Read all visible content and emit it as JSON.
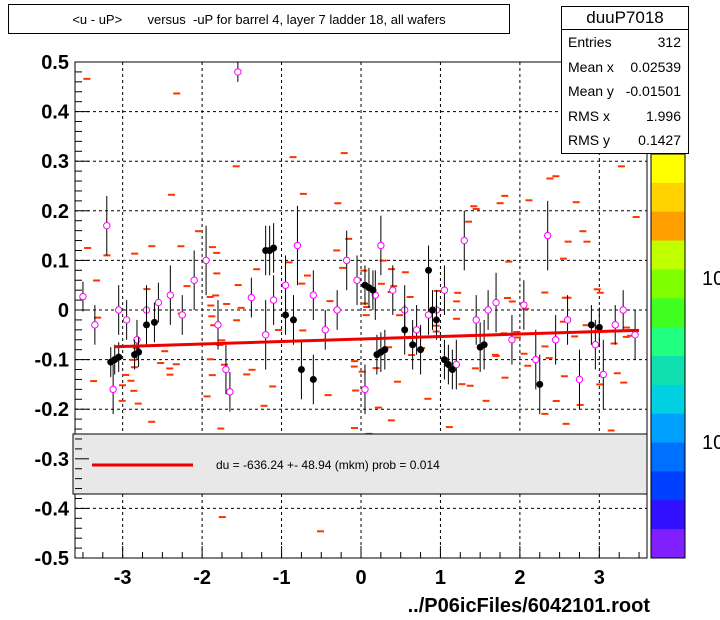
{
  "title": "<u - uP>       versus  -uP for barrel 4, layer 7 ladder 18, all wafers",
  "stats": {
    "name": "duuP7018",
    "rows": [
      {
        "label": "Entries",
        "value": "312"
      },
      {
        "label": "Mean x",
        "value": "0.02539"
      },
      {
        "label": "Mean y",
        "value": "-0.01501"
      },
      {
        "label": "RMS x",
        "value": "1.996"
      },
      {
        "label": "RMS y",
        "value": "0.1427"
      }
    ]
  },
  "legend": {
    "fit_text": "du = -636.24 +- 48.94 (mkm) prob = 0.014",
    "fit_color": "#ee0000"
  },
  "footer": "../P06icFiles/6042101.root",
  "colorbar": {
    "labels": [
      "10",
      "10"
    ],
    "colors": [
      "#ffff00",
      "#ffd200",
      "#ffa000",
      "#bfff00",
      "#80ff00",
      "#40ff20",
      "#20ff80",
      "#10e0b0",
      "#00d0e0",
      "#00a0ff",
      "#0070ff",
      "#0040ff",
      "#3010ff",
      "#8020ff"
    ]
  },
  "chart_data": {
    "type": "scatter",
    "xlim": [
      -3.6,
      3.6
    ],
    "ylim": [
      -0.5,
      0.5
    ],
    "x_ticks": [
      -3,
      -2,
      -1,
      0,
      1,
      2,
      3
    ],
    "x_tick_labels": [
      "-3",
      "-2",
      "-1",
      "0",
      "1",
      "2",
      "3"
    ],
    "y_ticks": [
      -0.5,
      -0.4,
      -0.3,
      -0.2,
      -0.1,
      0,
      0.1,
      0.2,
      0.3,
      0.4,
      0.5
    ],
    "y_tick_labels": [
      "-0.5",
      "-0.4",
      "-0.3",
      "-0.2",
      "-0.1",
      "0",
      "0.1",
      "0.2",
      "0.3",
      "0.4",
      "0.5"
    ],
    "grid": true,
    "fit_line": {
      "x": [
        -3.1,
        3.5
      ],
      "y": [
        -0.074,
        -0.041
      ]
    },
    "profile_open": [
      [
        -3.5,
        0.027,
        0.03
      ],
      [
        -3.35,
        -0.03,
        0.04
      ],
      [
        -3.2,
        0.17,
        0.06
      ],
      [
        -3.12,
        -0.16,
        0.05
      ],
      [
        -3.05,
        0.0,
        0.05
      ],
      [
        -2.95,
        -0.02,
        0.04
      ],
      [
        -2.82,
        -0.06,
        0.04
      ],
      [
        -2.7,
        0.0,
        0.05
      ],
      [
        -2.55,
        0.015,
        0.04
      ],
      [
        -2.4,
        0.03,
        0.06
      ],
      [
        -2.25,
        -0.01,
        0.04
      ],
      [
        -2.1,
        0.06,
        0.06
      ],
      [
        -1.95,
        0.1,
        0.07
      ],
      [
        -1.8,
        -0.03,
        0.05
      ],
      [
        -1.7,
        -0.12,
        0.05
      ],
      [
        -1.65,
        -0.165,
        0.04
      ],
      [
        -1.55,
        0.48,
        0.02
      ],
      [
        -1.38,
        0.025,
        0.04
      ],
      [
        -1.2,
        -0.05,
        0.07
      ],
      [
        -1.1,
        0.02,
        0.05
      ],
      [
        -0.95,
        0.05,
        0.06
      ],
      [
        -0.8,
        0.13,
        0.08
      ],
      [
        -0.6,
        0.03,
        0.05
      ],
      [
        -0.45,
        -0.04,
        0.04
      ],
      [
        -0.3,
        0.0,
        0.04
      ],
      [
        -0.18,
        0.1,
        0.06
      ],
      [
        -0.05,
        0.06,
        0.05
      ],
      [
        0.05,
        -0.16,
        0.05
      ],
      [
        0.18,
        0.03,
        0.05
      ],
      [
        0.25,
        0.13,
        0.06
      ],
      [
        0.4,
        0.04,
        0.05
      ],
      [
        0.55,
        0.0,
        0.05
      ],
      [
        0.7,
        -0.04,
        0.05
      ],
      [
        0.85,
        -0.01,
        0.04
      ],
      [
        0.95,
        0.0,
        0.04
      ],
      [
        1.05,
        0.04,
        0.05
      ],
      [
        1.2,
        -0.11,
        0.05
      ],
      [
        1.3,
        0.14,
        0.06
      ],
      [
        1.45,
        -0.02,
        0.05
      ],
      [
        1.6,
        0.0,
        0.04
      ],
      [
        1.7,
        0.015,
        0.06
      ],
      [
        1.9,
        -0.06,
        0.05
      ],
      [
        2.05,
        0.01,
        0.05
      ],
      [
        2.2,
        -0.1,
        0.06
      ],
      [
        2.35,
        0.15,
        0.07
      ],
      [
        2.45,
        -0.06,
        0.05
      ],
      [
        2.6,
        -0.02,
        0.05
      ],
      [
        2.75,
        -0.14,
        0.06
      ],
      [
        2.95,
        -0.07,
        0.05
      ],
      [
        3.05,
        -0.13,
        0.07
      ],
      [
        3.2,
        -0.03,
        0.04
      ],
      [
        3.3,
        0.0,
        0.04
      ],
      [
        3.45,
        -0.05,
        0.05
      ]
    ],
    "profile_filled": [
      [
        -3.15,
        -0.105,
        0.03
      ],
      [
        -3.1,
        -0.1,
        0.03
      ],
      [
        -3.05,
        -0.095,
        0.03
      ],
      [
        -2.85,
        -0.09,
        0.03
      ],
      [
        -2.8,
        -0.085,
        0.03
      ],
      [
        -2.7,
        -0.03,
        0.04
      ],
      [
        -2.6,
        -0.025,
        0.04
      ],
      [
        -1.2,
        0.12,
        0.05
      ],
      [
        -1.15,
        0.12,
        0.05
      ],
      [
        -1.1,
        0.125,
        0.05
      ],
      [
        -0.95,
        -0.01,
        0.04
      ],
      [
        -0.85,
        -0.02,
        0.05
      ],
      [
        -0.75,
        -0.12,
        0.06
      ],
      [
        -0.6,
        -0.14,
        0.05
      ],
      [
        0.05,
        0.05,
        0.04
      ],
      [
        0.1,
        0.045,
        0.04
      ],
      [
        0.15,
        0.04,
        0.04
      ],
      [
        0.2,
        -0.09,
        0.04
      ],
      [
        0.25,
        -0.085,
        0.04
      ],
      [
        0.3,
        -0.08,
        0.04
      ],
      [
        0.55,
        -0.04,
        0.05
      ],
      [
        0.65,
        -0.07,
        0.05
      ],
      [
        0.75,
        -0.08,
        0.05
      ],
      [
        0.85,
        0.08,
        0.05
      ],
      [
        0.9,
        0.0,
        0.04
      ],
      [
        0.95,
        -0.02,
        0.04
      ],
      [
        1.05,
        -0.1,
        0.04
      ],
      [
        1.1,
        -0.11,
        0.04
      ],
      [
        1.15,
        -0.12,
        0.04
      ],
      [
        1.5,
        -0.075,
        0.05
      ],
      [
        1.55,
        -0.07,
        0.05
      ],
      [
        2.25,
        -0.15,
        0.06
      ],
      [
        2.9,
        -0.03,
        0.04
      ],
      [
        3.0,
        -0.035,
        0.04
      ]
    ]
  }
}
